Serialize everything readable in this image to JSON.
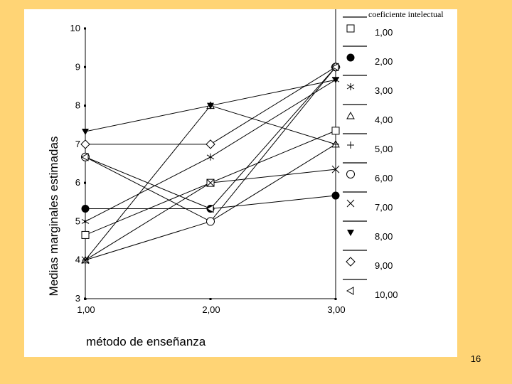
{
  "page_number": "16",
  "colors": {
    "slide_background": "#ffd475",
    "chart_background": "#ffffff",
    "ink": "#000000"
  },
  "chart_data": {
    "type": "line",
    "xlabel": "método de enseñanza",
    "ylabel": "Medias marginales estimadas",
    "categories": [
      "1,00",
      "2,00",
      "3,00"
    ],
    "x": [
      1,
      2,
      3
    ],
    "ylim": [
      3,
      10
    ],
    "yticks": [
      "3",
      "4",
      "5",
      "6",
      "7",
      "8",
      "9",
      "10"
    ],
    "grid": false,
    "legend": {
      "title": "coeficiente intelectual",
      "position": "right"
    },
    "series": [
      {
        "name": "1,00",
        "marker": "square",
        "values": [
          4.65,
          6.0,
          7.35
        ]
      },
      {
        "name": "2,00",
        "marker": "circle-filled",
        "values": [
          5.33,
          5.33,
          5.67
        ]
      },
      {
        "name": "3,00",
        "marker": "asterisk",
        "values": [
          5.0,
          6.67,
          8.67
        ]
      },
      {
        "name": "4,00",
        "marker": "triangle-up",
        "values": [
          4.0,
          8.0,
          7.0
        ]
      },
      {
        "name": "5,00",
        "marker": "plus",
        "values": [
          4.0,
          5.0,
          7.0
        ]
      },
      {
        "name": "6,00",
        "marker": "circle-open",
        "values": [
          6.67,
          5.0,
          9.0
        ]
      },
      {
        "name": "7,00",
        "marker": "x",
        "values": [
          4.0,
          6.0,
          6.35
        ]
      },
      {
        "name": "8,00",
        "marker": "triangle-down",
        "values": [
          7.33,
          8.0,
          8.67
        ]
      },
      {
        "name": "9,00",
        "marker": "diamond",
        "values": [
          7.0,
          7.0,
          9.0
        ]
      },
      {
        "name": "10,00",
        "marker": "triangle-left",
        "values": [
          6.67,
          5.33,
          9.0
        ]
      }
    ]
  }
}
